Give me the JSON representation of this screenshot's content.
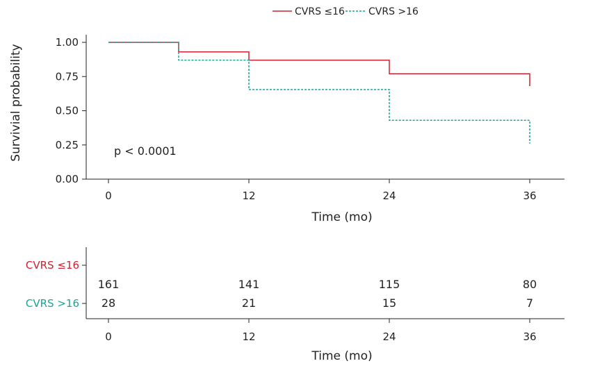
{
  "chart_data": [
    {
      "type": "line",
      "subtype": "kaplan-meier",
      "title": "",
      "xlabel": "Time (mo)",
      "ylabel": "Survivial probability",
      "xlim": [
        -1,
        41
      ],
      "ylim": [
        0,
        1.05
      ],
      "x_ticks": [
        0,
        12,
        24,
        36
      ],
      "y_ticks": [
        "0.00",
        "0.25",
        "0.50",
        "0.75",
        "1.00"
      ],
      "annotation": "p < 0.0001",
      "legend_position": "top-center",
      "series": [
        {
          "name": "CVRS ≤16",
          "color": "#d0202f",
          "dash": "solid",
          "steps": [
            [
              0,
              1.0
            ],
            [
              6,
              0.93
            ],
            [
              12,
              0.87
            ],
            [
              24,
              0.77
            ],
            [
              36,
              0.77
            ]
          ],
          "censor_drop_to": 0.68
        },
        {
          "name": "CVRS >16",
          "color": "#1aa39a",
          "dash": "dashed",
          "steps": [
            [
              0,
              1.0
            ],
            [
              6,
              0.87
            ],
            [
              12,
              0.655
            ],
            [
              24,
              0.43
            ],
            [
              36,
              0.43
            ]
          ],
          "censor_drop_to": 0.26
        }
      ]
    },
    {
      "type": "table",
      "subtype": "number-at-risk",
      "xlabel": "Time (mo)",
      "x_ticks": [
        0,
        12,
        24,
        36
      ],
      "rows": [
        {
          "label": "CVRS ≤16",
          "color": "#d0202f",
          "values": [
            161,
            141,
            115,
            80
          ]
        },
        {
          "label": "CVRS >16",
          "color": "#1aa39a",
          "values": [
            28,
            21,
            15,
            7
          ]
        }
      ]
    }
  ]
}
